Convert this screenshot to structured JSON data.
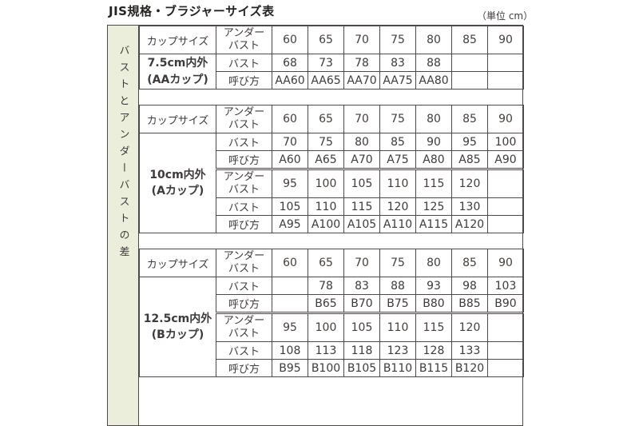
{
  "page": {
    "title": "JIS規格・ブラジャーサイズ表",
    "unit_note": "（単位 cm）",
    "side_label": "バストとアンダーバストの差"
  },
  "header": {
    "cup_size": "カップサイズ",
    "underbust_l1": "アンダー",
    "underbust_l2": "バスト"
  },
  "labels": {
    "bust": "バスト",
    "name": "呼び方"
  },
  "sections": [
    {
      "id": "AA",
      "label_line1": "7.5cm内外",
      "label_line2": "(AAカップ)",
      "underbust": [
        "60",
        "65",
        "70",
        "75",
        "80",
        "85",
        "90"
      ],
      "bust": [
        "68",
        "73",
        "78",
        "83",
        "88",
        "",
        ""
      ],
      "name": [
        "AA60",
        "AA65",
        "AA70",
        "AA75",
        "AA80",
        "",
        ""
      ]
    },
    {
      "id": "A",
      "label_line1": "10cm内外",
      "label_line2": "(Aカップ)",
      "underbust": [
        "60",
        "65",
        "70",
        "75",
        "80",
        "85",
        "90"
      ],
      "bust": [
        "70",
        "75",
        "80",
        "85",
        "90",
        "95",
        "100"
      ],
      "name": [
        "A60",
        "A65",
        "A70",
        "A75",
        "A80",
        "A85",
        "A90"
      ],
      "underbust2": [
        "95",
        "100",
        "105",
        "110",
        "115",
        "120",
        ""
      ],
      "bust2": [
        "105",
        "110",
        "115",
        "120",
        "125",
        "130",
        ""
      ],
      "name2": [
        "A95",
        "A100",
        "A105",
        "A110",
        "A115",
        "A120",
        ""
      ]
    },
    {
      "id": "B",
      "label_line1": "12.5cm内外",
      "label_line2": "(Bカップ)",
      "underbust": [
        "60",
        "65",
        "70",
        "75",
        "80",
        "85",
        "90"
      ],
      "bust": [
        "",
        "78",
        "83",
        "88",
        "93",
        "98",
        "103"
      ],
      "name": [
        "",
        "B65",
        "B70",
        "B75",
        "B80",
        "B85",
        "B90"
      ],
      "underbust2": [
        "95",
        "100",
        "105",
        "110",
        "115",
        "120",
        ""
      ],
      "bust2": [
        "108",
        "113",
        "118",
        "123",
        "128",
        "133",
        ""
      ],
      "name2": [
        "B95",
        "B100",
        "B105",
        "B110",
        "B115",
        "B120",
        ""
      ]
    }
  ],
  "colors": {
    "peach_header": "#fce3cd",
    "pink_label": "#f9c6c3",
    "blue_cup_label": "#dce6f1",
    "green_side_strip": "#eaeedb",
    "border": "#4c4948",
    "text": "#3e3a39"
  },
  "chart_data": [
    {
      "type": "table",
      "title": "7.5cm内外 (AAカップ)",
      "rows": [
        {
          "label": "アンダーバスト",
          "values": [
            60,
            65,
            70,
            75,
            80,
            85,
            90
          ]
        },
        {
          "label": "バスト",
          "values": [
            68,
            73,
            78,
            83,
            88,
            null,
            null
          ]
        },
        {
          "label": "呼び方",
          "values": [
            "AA60",
            "AA65",
            "AA70",
            "AA75",
            "AA80",
            null,
            null
          ]
        }
      ]
    },
    {
      "type": "table",
      "title": "10cm内外 (Aカップ)",
      "rows": [
        {
          "label": "アンダーバスト",
          "values": [
            60,
            65,
            70,
            75,
            80,
            85,
            90
          ]
        },
        {
          "label": "バスト",
          "values": [
            70,
            75,
            80,
            85,
            90,
            95,
            100
          ]
        },
        {
          "label": "呼び方",
          "values": [
            "A60",
            "A65",
            "A70",
            "A75",
            "A80",
            "A85",
            "A90"
          ]
        },
        {
          "label": "アンダーバスト",
          "values": [
            95,
            100,
            105,
            110,
            115,
            120,
            null
          ]
        },
        {
          "label": "バスト",
          "values": [
            105,
            110,
            115,
            120,
            125,
            130,
            null
          ]
        },
        {
          "label": "呼び方",
          "values": [
            "A95",
            "A100",
            "A105",
            "A110",
            "A115",
            "A120",
            null
          ]
        }
      ]
    },
    {
      "type": "table",
      "title": "12.5cm内外 (Bカップ)",
      "rows": [
        {
          "label": "アンダーバスト",
          "values": [
            60,
            65,
            70,
            75,
            80,
            85,
            90
          ]
        },
        {
          "label": "バスト",
          "values": [
            null,
            78,
            83,
            88,
            93,
            98,
            103
          ]
        },
        {
          "label": "呼び方",
          "values": [
            null,
            "B65",
            "B70",
            "B75",
            "B80",
            "B85",
            "B90"
          ]
        },
        {
          "label": "アンダーバスト",
          "values": [
            95,
            100,
            105,
            110,
            115,
            120,
            null
          ]
        },
        {
          "label": "バスト",
          "values": [
            108,
            113,
            118,
            123,
            128,
            133,
            null
          ]
        },
        {
          "label": "呼び方",
          "values": [
            "B95",
            "B100",
            "B105",
            "B110",
            "B115",
            "B120",
            null
          ]
        }
      ]
    }
  ]
}
